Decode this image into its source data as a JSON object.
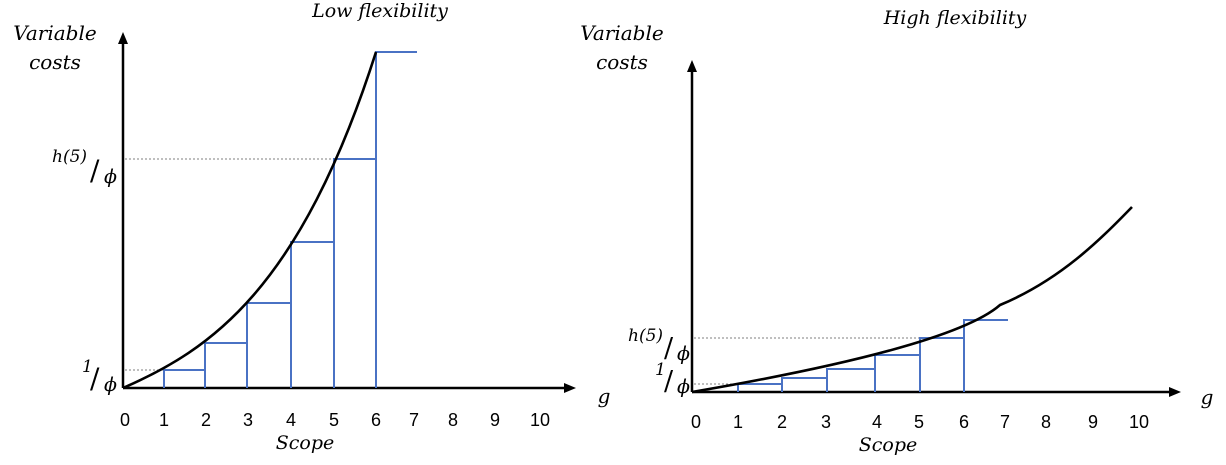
{
  "panels": [
    {
      "title": "Low flexibility",
      "ylabel_line1": "Variable",
      "ylabel_line2": "costs",
      "xlabel": "Scope",
      "x_axis_symbol": "g",
      "origin_label": "0",
      "x_ticks": [
        "1",
        "2",
        "3",
        "4",
        "5",
        "6",
        "7",
        "8",
        "9",
        "10"
      ],
      "ymark_h5": {
        "num": "h(5)",
        "den": "ϕ"
      },
      "ymark_one": {
        "num": "1",
        "den": "ϕ"
      },
      "curve_color": "#000000",
      "step_color": "#4a72c4"
    },
    {
      "title": "High flexibility",
      "ylabel_line1": "Variable",
      "ylabel_line2": "costs",
      "xlabel": "Scope",
      "x_axis_symbol": "g",
      "origin_label": "0",
      "x_ticks": [
        "1",
        "2",
        "3",
        "4",
        "5",
        "6",
        "7",
        "8",
        "9",
        "10"
      ],
      "ymark_h5": {
        "num": "h(5)",
        "den": "ϕ"
      },
      "ymark_one": {
        "num": "1",
        "den": "ϕ"
      },
      "curve_color": "#000000",
      "step_color": "#4a72c4"
    }
  ]
}
